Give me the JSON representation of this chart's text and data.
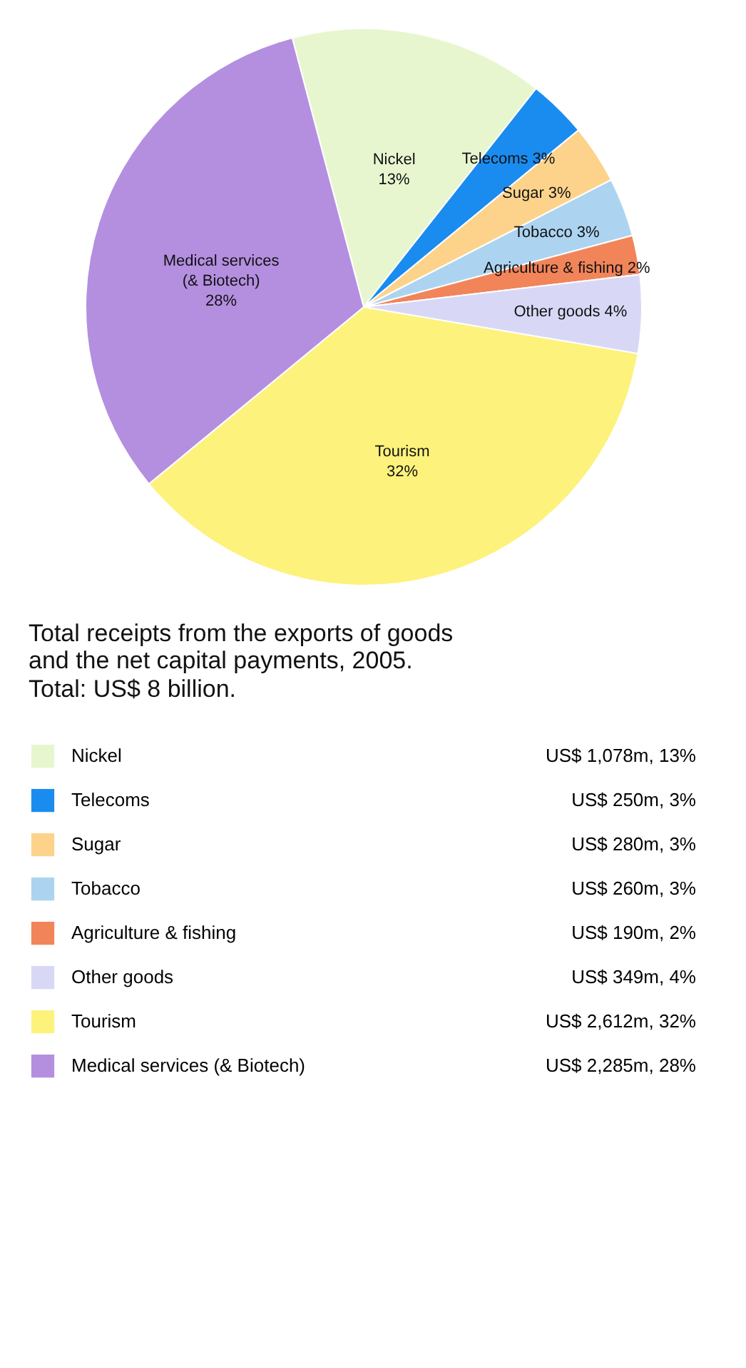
{
  "chart_data": {
    "type": "pie",
    "title": "Total receipts from the exports of goods and the net capital payments, 2005.",
    "subtitle": "Total: US$ 8 billion.",
    "categories": [
      "Nickel",
      "Telecoms",
      "Sugar",
      "Tobacco",
      "Agriculture & fishing",
      "Other goods",
      "Tourism",
      "Medical services (& Biotech)"
    ],
    "values": [
      13,
      3,
      3,
      3,
      2,
      4,
      32,
      28
    ],
    "colors": [
      "#e8f6cf",
      "#1a8cf0",
      "#fdd38c",
      "#acd4f0",
      "#f2845a",
      "#d8d8f6",
      "#fdf27c",
      "#b48fe0"
    ],
    "value_labels": [
      "13%",
      "3%",
      "3%",
      "3%",
      "2%",
      "4%",
      "32%",
      "28%"
    ],
    "annotations": [
      "US$ 1,078m, 13%",
      "US$ 250m, 3%",
      "US$ 280m, 3%",
      "US$ 260m, 3%",
      "US$ 190m, 2%",
      "US$ 349m, 4%",
      "US$ 2,612m, 32%",
      "US$ 2,285m, 28%"
    ],
    "legend": "bottom"
  }
}
